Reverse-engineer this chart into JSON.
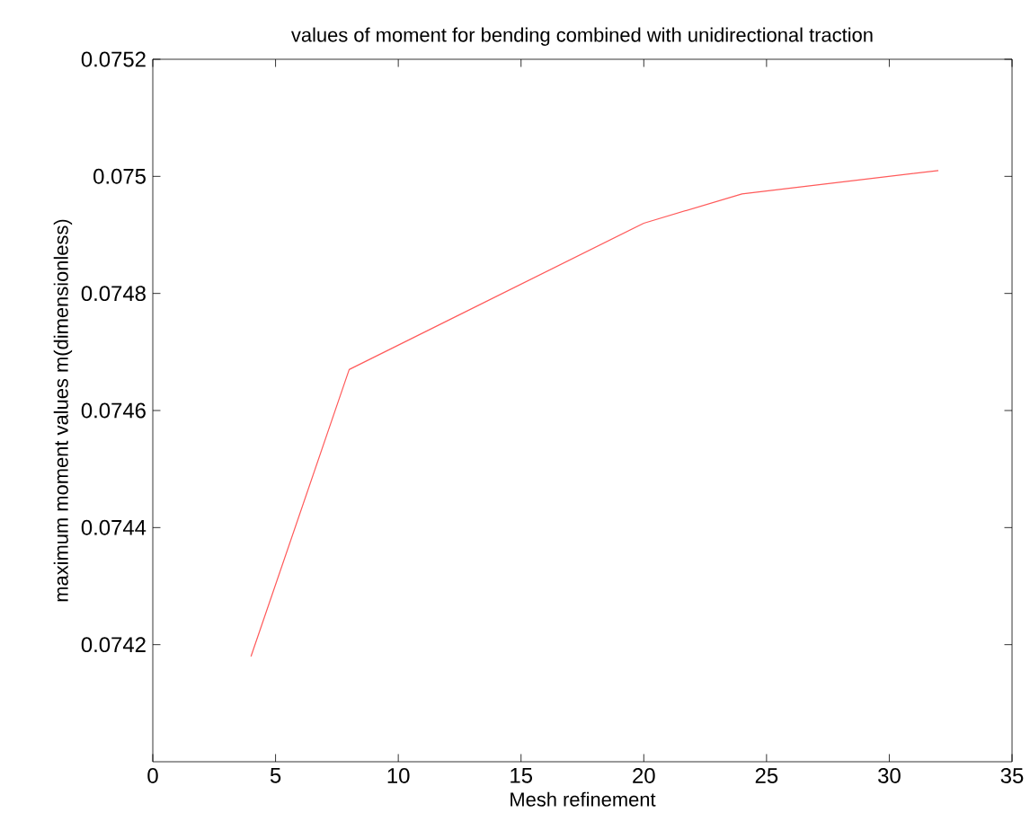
{
  "chart_data": {
    "type": "line",
    "title": "values of moment for bending combined with unidirectional traction",
    "xlabel": "Mesh refinement",
    "ylabel": "maximum moment values m(dimensionless)",
    "x": [
      4,
      8,
      20,
      24,
      32
    ],
    "series": [
      {
        "color": "#ff5a5a",
        "values": [
          0.07418,
          0.07467,
          0.07492,
          0.07497,
          0.07501
        ]
      }
    ],
    "xlim": [
      0,
      35
    ],
    "xticks": [
      0,
      5,
      10,
      15,
      20,
      25,
      30,
      35
    ],
    "ylim": [
      0.074,
      0.0752
    ],
    "yticks": [
      0.0742,
      0.0744,
      0.0746,
      0.0748,
      0.075,
      0.0752
    ],
    "grid": false,
    "marker": "none",
    "line_style": "solid"
  }
}
